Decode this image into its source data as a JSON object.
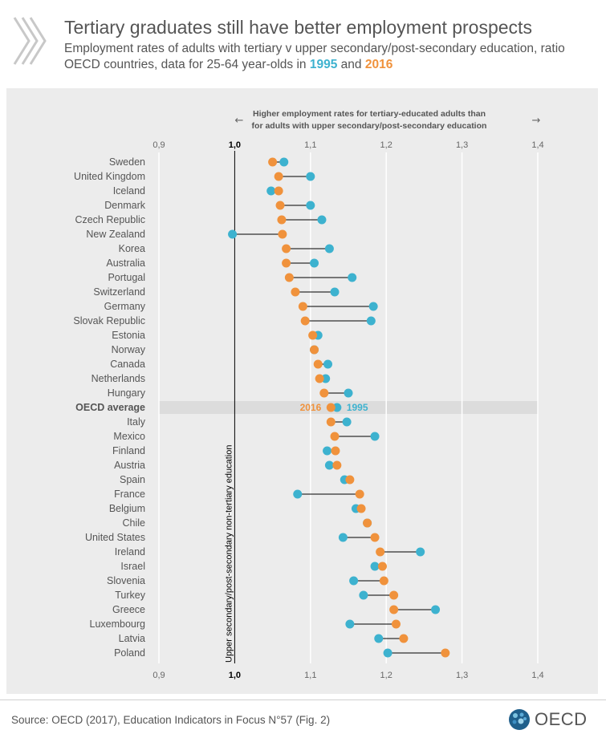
{
  "header": {
    "title": "Tertiary graduates still have better employment prospects",
    "subtitle_line1": "Employment rates of adults with tertiary v upper secondary/post-secondary education, ratio",
    "subtitle_line2_prefix": "OECD countries, data for 25-64 year-olds in",
    "subtitle_year1": "1995",
    "subtitle_and": "and",
    "subtitle_year2": "2016"
  },
  "footer": {
    "source": "Source: OECD (2017), Education Indicators in Focus N°57 (Fig. 2)",
    "logo_text": "OECD"
  },
  "colors": {
    "series_1995": "#3db2cf",
    "series_2016": "#f0923c",
    "background": "#ececec",
    "highlight_row": "#dcdcdc"
  },
  "chart_data": {
    "type": "dumbbell",
    "xlim": [
      0.9,
      1.4
    ],
    "ticks": [
      "0,9",
      "1,0",
      "1,1",
      "1,2",
      "1,3",
      "1,4"
    ],
    "tick_values": [
      0.9,
      1.0,
      1.1,
      1.2,
      1.3,
      1.4
    ],
    "annotation_top_line1": "Higher employment rates for tertiary-educated adults than",
    "annotation_top_line2": "for adults with upper secondary/post-secondary education",
    "reference_label": "Upper secondary/post-secondary non-tertiary education",
    "highlight_country": "OECD average",
    "highlight_label_2016": "2016",
    "highlight_label_1995": "1995",
    "countries": [
      "Sweden",
      "United Kingdom",
      "Iceland",
      "Denmark",
      "Czech Republic",
      "New Zealand",
      "Korea",
      "Australia",
      "Portugal",
      "Switzerland",
      "Germany",
      "Slovak Republic",
      "Estonia",
      "Norway",
      "Canada",
      "Netherlands",
      "Hungary",
      "OECD average",
      "Italy",
      "Mexico",
      "Finland",
      "Austria",
      "Spain",
      "France",
      "Belgium",
      "Chile",
      "United States",
      "Ireland",
      "Israel",
      "Slovenia",
      "Turkey",
      "Greece",
      "Luxembourg",
      "Latvia",
      "Poland"
    ],
    "series": [
      {
        "name": "1995",
        "values": [
          1.065,
          1.1,
          1.048,
          1.1,
          1.115,
          0.997,
          1.125,
          1.105,
          1.155,
          1.132,
          1.183,
          1.18,
          1.11,
          1.105,
          1.123,
          1.12,
          1.15,
          1.135,
          1.148,
          1.185,
          1.122,
          1.125,
          1.145,
          1.083,
          1.16,
          1.175,
          1.143,
          1.245,
          1.185,
          1.157,
          1.17,
          1.265,
          1.152,
          1.19,
          1.202
        ]
      },
      {
        "name": "2016",
        "values": [
          1.05,
          1.058,
          1.058,
          1.06,
          1.062,
          1.063,
          1.068,
          1.068,
          1.072,
          1.08,
          1.09,
          1.093,
          1.103,
          1.105,
          1.11,
          1.112,
          1.118,
          1.127,
          1.127,
          1.132,
          1.133,
          1.135,
          1.152,
          1.165,
          1.167,
          1.175,
          1.185,
          1.192,
          1.195,
          1.197,
          1.21,
          1.21,
          1.213,
          1.223,
          1.278
        ]
      }
    ]
  }
}
